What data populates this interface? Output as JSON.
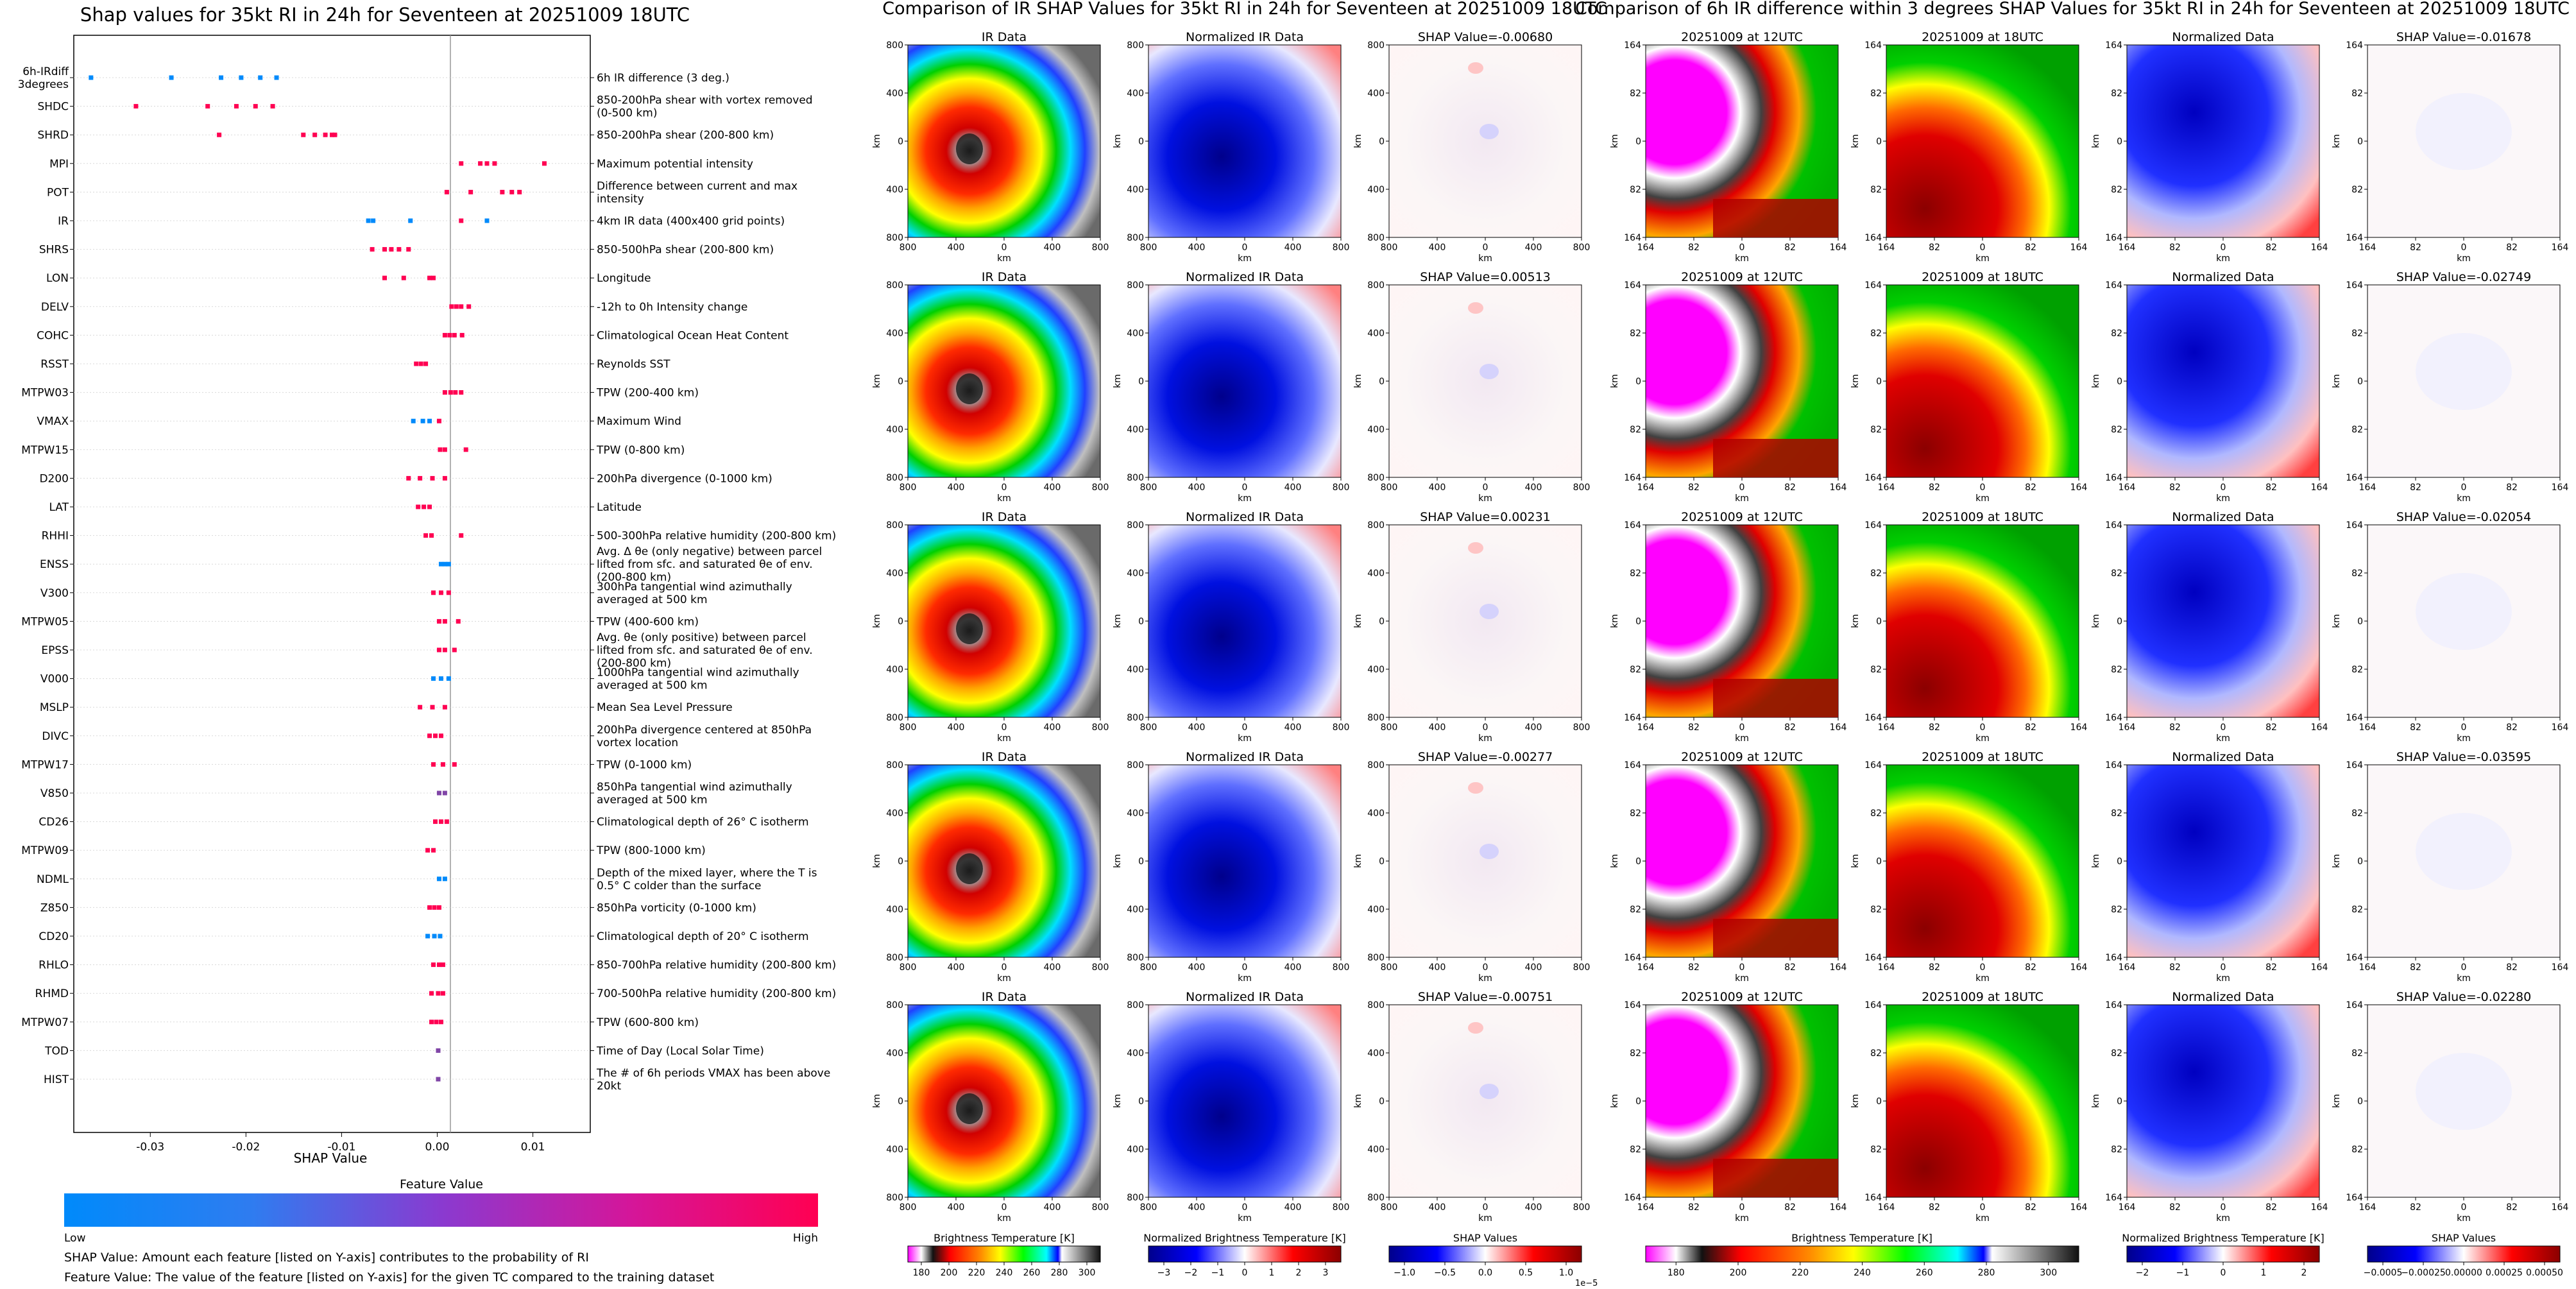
{
  "colors": {
    "shap_low": "#1e88e5",
    "shap_high": "#ff0052",
    "ir_stops": [
      "#ff00ff",
      "#ffffff",
      "#000000",
      "#ff0000",
      "#ffa500",
      "#ffff00",
      "#00ff00",
      "#00ffff",
      "#0000ff",
      "#ffffff",
      "#000000"
    ],
    "bwr_stops": [
      "#00008b",
      "#0000ff",
      "#ffffff",
      "#ff0000",
      "#8b0000"
    ]
  },
  "shap_panel": {
    "title": "Shap values for 35kt RI in 24h for Seventeen at 20251009 18UTC",
    "xlabel": "SHAP Value",
    "colorbar_label": "Feature Value",
    "colorbar_low": "Low",
    "colorbar_high": "High",
    "note1": "SHAP Value: Amount each feature [listed on Y-axis] contributes to the probability of RI",
    "note2": "Feature Value: The value of the feature [listed on Y-axis] for the given TC compared to the training dataset"
  },
  "chart_data": [
    {
      "type": "scatter",
      "title": "Shap values for 35kt RI in 24h for Seventeen at 20251009 18UTC",
      "xlabel": "SHAP Value",
      "xlim": [
        -0.038,
        0.016
      ],
      "xticks": [
        "-0.03",
        "-0.02",
        "-0.01",
        "0.00",
        "0.01"
      ],
      "xtick_values": [
        -0.03,
        -0.02,
        -0.01,
        0.0,
        0.01
      ],
      "features": [
        {
          "name": "6h-IRdiff 3degrees",
          "desc": "6h IR difference (3 deg.)",
          "points": [
            [
              -0.0362,
              0
            ],
            [
              -0.0278,
              0
            ],
            [
              -0.0226,
              0
            ],
            [
              -0.0205,
              0
            ],
            [
              -0.0185,
              0
            ],
            [
              -0.0168,
              0
            ]
          ]
        },
        {
          "name": "SHDC",
          "desc": "850-200hPa shear with vortex removed (0-500 km)",
          "points": [
            [
              -0.0315,
              1
            ],
            [
              -0.024,
              1
            ],
            [
              -0.021,
              1
            ],
            [
              -0.019,
              1
            ],
            [
              -0.0172,
              1
            ]
          ]
        },
        {
          "name": "SHRD",
          "desc": "850-200hPa shear (200-800 km)",
          "points": [
            [
              -0.0228,
              1
            ],
            [
              -0.014,
              1
            ],
            [
              -0.0128,
              1
            ],
            [
              -0.0117,
              1
            ],
            [
              -0.011,
              1
            ],
            [
              -0.0107,
              1
            ]
          ]
        },
        {
          "name": "MPI",
          "desc": "Maximum potential intensity",
          "points": [
            [
              0.0025,
              1
            ],
            [
              0.0045,
              1
            ],
            [
              0.0052,
              1
            ],
            [
              0.006,
              1
            ],
            [
              0.0112,
              1
            ]
          ]
        },
        {
          "name": "POT",
          "desc": "Difference between current and max intensity",
          "points": [
            [
              0.001,
              1
            ],
            [
              0.0035,
              1
            ],
            [
              0.0068,
              1
            ],
            [
              0.0078,
              1
            ],
            [
              0.0086,
              1
            ]
          ]
        },
        {
          "name": "IR",
          "desc": "4km IR data (400x400 grid points)",
          "points": [
            [
              -0.0072,
              0
            ],
            [
              -0.0067,
              0
            ],
            [
              -0.0028,
              0
            ],
            [
              0.0025,
              1
            ],
            [
              0.0052,
              0
            ]
          ]
        },
        {
          "name": "SHRS",
          "desc": "850-500hPa shear (200-800 km)",
          "points": [
            [
              -0.0068,
              1
            ],
            [
              -0.0055,
              1
            ],
            [
              -0.0048,
              1
            ],
            [
              -0.004,
              1
            ],
            [
              -0.003,
              1
            ]
          ]
        },
        {
          "name": "LON",
          "desc": "Longitude",
          "points": [
            [
              -0.0055,
              1
            ],
            [
              -0.0035,
              1
            ],
            [
              -0.0008,
              1
            ],
            [
              -0.0004,
              1
            ]
          ]
        },
        {
          "name": "DELV",
          "desc": "-12h to 0h Intensity change",
          "points": [
            [
              0.0015,
              1
            ],
            [
              0.002,
              1
            ],
            [
              0.0025,
              1
            ],
            [
              0.0033,
              1
            ]
          ]
        },
        {
          "name": "COHC",
          "desc": "Climatological Ocean Heat Content",
          "points": [
            [
              0.0008,
              1
            ],
            [
              0.0013,
              1
            ],
            [
              0.0018,
              1
            ],
            [
              0.0026,
              1
            ]
          ]
        },
        {
          "name": "RSST",
          "desc": "Reynolds SST",
          "points": [
            [
              -0.0022,
              1
            ],
            [
              -0.0017,
              1
            ],
            [
              -0.0012,
              1
            ]
          ]
        },
        {
          "name": "MTPW03",
          "desc": "TPW (200-400 km)",
          "points": [
            [
              0.0008,
              1
            ],
            [
              0.0014,
              1
            ],
            [
              0.0019,
              1
            ],
            [
              0.0025,
              1
            ]
          ]
        },
        {
          "name": "VMAX",
          "desc": "Maximum Wind",
          "points": [
            [
              -0.0025,
              0
            ],
            [
              -0.0015,
              0
            ],
            [
              -0.0008,
              0
            ],
            [
              0.0002,
              1
            ]
          ]
        },
        {
          "name": "MTPW15",
          "desc": "TPW (0-800 km)",
          "points": [
            [
              0.0003,
              1
            ],
            [
              0.0008,
              1
            ],
            [
              0.003,
              1
            ]
          ]
        },
        {
          "name": "D200",
          "desc": "200hPa divergence (0-1000 km)",
          "points": [
            [
              -0.003,
              1
            ],
            [
              -0.0018,
              1
            ],
            [
              -0.0005,
              1
            ],
            [
              0.0008,
              1
            ]
          ]
        },
        {
          "name": "LAT",
          "desc": "Latitude",
          "points": [
            [
              -0.002,
              1
            ],
            [
              -0.0014,
              1
            ],
            [
              -0.0008,
              1
            ]
          ]
        },
        {
          "name": "RHHI",
          "desc": "500-300hPa relative humidity (200-800 km)",
          "points": [
            [
              -0.0012,
              1
            ],
            [
              -0.0006,
              1
            ],
            [
              0.0025,
              1
            ]
          ]
        },
        {
          "name": "ENSS",
          "desc": "Avg. Δ θe (only negative) between parcel lifted from sfc. and saturated θe of env. (200-800 km)",
          "points": [
            [
              0.0004,
              0
            ],
            [
              0.0008,
              0
            ],
            [
              0.0012,
              0
            ]
          ]
        },
        {
          "name": "V300",
          "desc": "300hPa tangential wind azimuthally averaged at 500 km",
          "points": [
            [
              -0.0004,
              1
            ],
            [
              0.0004,
              1
            ],
            [
              0.0012,
              1
            ]
          ]
        },
        {
          "name": "MTPW05",
          "desc": "TPW (400-600 km)",
          "points": [
            [
              0.0002,
              1
            ],
            [
              0.0008,
              1
            ],
            [
              0.0022,
              1
            ]
          ]
        },
        {
          "name": "EPSS",
          "desc": "Avg. θe (only positive) between parcel lifted from sfc. and saturated θe of env. (200-800 km)",
          "points": [
            [
              0.0002,
              1
            ],
            [
              0.0008,
              1
            ],
            [
              0.0018,
              1
            ]
          ]
        },
        {
          "name": "V000",
          "desc": "1000hPa tangential wind azimuthally averaged at 500 km",
          "points": [
            [
              -0.0004,
              0
            ],
            [
              0.0004,
              0
            ],
            [
              0.0012,
              0
            ]
          ]
        },
        {
          "name": "MSLP",
          "desc": "Mean Sea Level Pressure",
          "points": [
            [
              -0.0018,
              1
            ],
            [
              -0.0005,
              1
            ],
            [
              0.0008,
              1
            ]
          ]
        },
        {
          "name": "DIVC",
          "desc": "200hPa divergence centered at 850hPa vortex location",
          "points": [
            [
              -0.0008,
              1
            ],
            [
              -0.0002,
              1
            ],
            [
              0.0004,
              1
            ]
          ]
        },
        {
          "name": "MTPW17",
          "desc": "TPW (0-1000 km)",
          "points": [
            [
              -0.0004,
              1
            ],
            [
              0.0006,
              1
            ],
            [
              0.0018,
              1
            ]
          ]
        },
        {
          "name": "V850",
          "desc": "850hPa tangential wind azimuthally averaged at 500 km",
          "points": [
            [
              0.0002,
              0.5
            ],
            [
              0.0008,
              0.5
            ]
          ]
        },
        {
          "name": "CD26",
          "desc": "Climatological depth of 26° C isotherm",
          "points": [
            [
              -0.0002,
              1
            ],
            [
              0.0004,
              1
            ],
            [
              0.001,
              1
            ]
          ]
        },
        {
          "name": "MTPW09",
          "desc": "TPW (800-1000 km)",
          "points": [
            [
              -0.001,
              1
            ],
            [
              -0.0004,
              1
            ]
          ]
        },
        {
          "name": "NDML",
          "desc": "Depth of the mixed layer, where the T is 0.5° C colder than the surface",
          "points": [
            [
              0.0002,
              0
            ],
            [
              0.0008,
              0
            ]
          ]
        },
        {
          "name": "Z850",
          "desc": "850hPa vorticity (0-1000 km)",
          "points": [
            [
              -0.0008,
              1
            ],
            [
              -0.0003,
              1
            ],
            [
              0.0002,
              1
            ]
          ]
        },
        {
          "name": "CD20",
          "desc": "Climatological depth of 20° C isotherm",
          "points": [
            [
              -0.001,
              0
            ],
            [
              -0.0003,
              0
            ],
            [
              0.0003,
              0
            ]
          ]
        },
        {
          "name": "RHLO",
          "desc": "850-700hPa relative humidity (200-800 km)",
          "points": [
            [
              -0.0004,
              1
            ],
            [
              0.0002,
              1
            ],
            [
              0.0006,
              1
            ]
          ]
        },
        {
          "name": "RHMD",
          "desc": "700-500hPa relative humidity (200-800 km)",
          "points": [
            [
              -0.0006,
              1
            ],
            [
              0.0001,
              1
            ],
            [
              0.0006,
              1
            ]
          ]
        },
        {
          "name": "MTPW07",
          "desc": "TPW (600-800 km)",
          "points": [
            [
              -0.0006,
              1
            ],
            [
              -0.0001,
              1
            ],
            [
              0.0004,
              1
            ]
          ]
        },
        {
          "name": "TOD",
          "desc": "Time of Day (Local Solar Time)",
          "points": [
            [
              0.0001,
              0.5
            ]
          ]
        },
        {
          "name": "HIST",
          "desc": "The # of 6h periods VMAX has been above 20kt",
          "points": [
            [
              0.0001,
              0.5
            ]
          ]
        }
      ]
    }
  ],
  "ir_section": {
    "title": "Comparison of IR SHAP Values for 35kt RI in 24h for Seventeen at 20251009 18UTC",
    "col_titles": [
      "IR Data",
      "Normalized IR Data"
    ],
    "shap_titles": [
      "SHAP Value=-0.00680",
      "SHAP Value=0.00513",
      "SHAP Value=0.00231",
      "SHAP Value=-0.00277",
      "SHAP Value=-0.00751"
    ],
    "axis_label": "km",
    "yticks": [
      "800",
      "400",
      "0",
      "400",
      "800"
    ],
    "xticks": [
      "800",
      "400",
      "0",
      "400",
      "800"
    ],
    "cb1_label": "Brightness Temperature [K]",
    "cb1_ticks": [
      "180",
      "200",
      "220",
      "240",
      "260",
      "280",
      "300"
    ],
    "cb2_label": "Normalized Brightness Temperature [K]",
    "cb2_ticks": [
      "−3",
      "−2",
      "−1",
      "0",
      "1",
      "2",
      "3"
    ],
    "cb3_label": "SHAP Values",
    "cb3_ticks": [
      "−1.0",
      "−0.5",
      "0.0",
      "0.5",
      "1.0"
    ],
    "cb3_offset": "1e−5"
  },
  "diff_section": {
    "title": "Comparison of 6h IR difference within 3 degrees SHAP Values for 35kt RI in 24h for Seventeen at 20251009 18UTC",
    "col_titles": [
      "20251009 at 12UTC",
      "20251009 at 18UTC",
      "Normalized Data"
    ],
    "shap_titles": [
      "SHAP Value=-0.01678",
      "SHAP Value=-0.02749",
      "SHAP Value=-0.02054",
      "SHAP Value=-0.03595",
      "SHAP Value=-0.02280"
    ],
    "axis_label": "km",
    "yticks": [
      "164",
      "82",
      "0",
      "82",
      "164"
    ],
    "xticks": [
      "164",
      "82",
      "0",
      "82",
      "164"
    ],
    "cb1_label": "Brightness Temperature [K]",
    "cb1_ticks": [
      "180",
      "200",
      "220",
      "240",
      "260",
      "280",
      "300"
    ],
    "cb2_label": "Normalized Brightness Temperature [K]",
    "cb2_ticks": [
      "−2",
      "−1",
      "0",
      "1",
      "2"
    ],
    "cb3_label": "SHAP Values",
    "cb3_ticks": [
      "−0.0005",
      "−0.00025",
      "0.00000",
      "0.00025",
      "0.00050"
    ]
  }
}
